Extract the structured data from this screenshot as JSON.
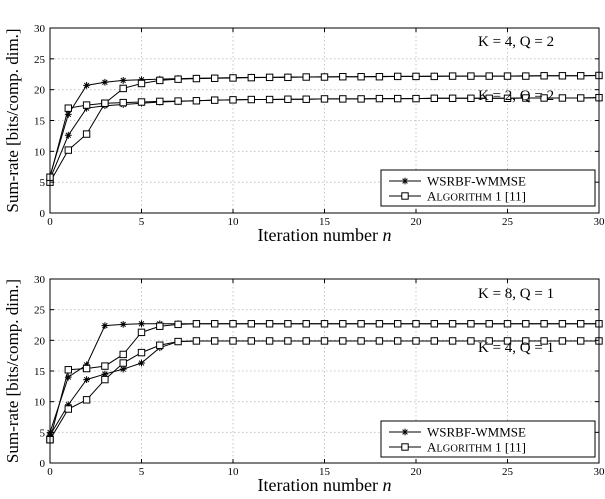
{
  "chart_data": [
    {
      "type": "line",
      "xlabel": "Iteration number n",
      "ylabel": "Sum-rate [bits/comp. dim.]",
      "xlim": [
        0,
        30
      ],
      "ylim": [
        0,
        30
      ],
      "xticks": [
        "0",
        "5",
        "10",
        "15",
        "20",
        "25",
        "30"
      ],
      "yticks": [
        "0",
        "5",
        "10",
        "15",
        "20",
        "25",
        "30"
      ],
      "grid": true,
      "legend_position": "bottom-right",
      "legend": [
        "WSRBF-WMMSE",
        "Algorithm 1 [11]"
      ],
      "annotations": [
        "K = 4, Q = 2",
        "K = 2, Q = 2"
      ],
      "series": [
        {
          "name": "WSRBF-WMMSE",
          "group": "K = 4, Q = 2",
          "marker": "star",
          "x": [
            0,
            1,
            2,
            3,
            4,
            5,
            6,
            7,
            8,
            9,
            10,
            11,
            12,
            13,
            14,
            15,
            16,
            17,
            18,
            19,
            20,
            21,
            22,
            23,
            24,
            25,
            26,
            27,
            28,
            29,
            30
          ],
          "y": [
            6.0,
            16.0,
            20.7,
            21.2,
            21.5,
            21.6,
            21.7,
            21.8,
            21.85,
            21.9,
            21.95,
            22.0,
            22.0,
            22.05,
            22.05,
            22.1,
            22.1,
            22.1,
            22.15,
            22.15,
            22.15,
            22.2,
            22.2,
            22.2,
            22.2,
            22.2,
            22.25,
            22.25,
            22.25,
            22.25,
            22.3
          ]
        },
        {
          "name": "WSRBF-WMMSE",
          "group": "K = 2, Q = 2",
          "marker": "star",
          "x": [
            0,
            1,
            2,
            3,
            4,
            5,
            6,
            7,
            8,
            9,
            10,
            11,
            12,
            13,
            14,
            15,
            16,
            17,
            18,
            19,
            20,
            21,
            22,
            23,
            24,
            25,
            26,
            27,
            28,
            29,
            30
          ],
          "y": [
            5.5,
            12.6,
            17.0,
            17.4,
            17.6,
            17.8,
            18.0,
            18.1,
            18.2,
            18.3,
            18.35,
            18.4,
            18.4,
            18.45,
            18.45,
            18.5,
            18.5,
            18.5,
            18.55,
            18.55,
            18.55,
            18.6,
            18.6,
            18.6,
            18.6,
            18.6,
            18.65,
            18.65,
            18.65,
            18.65,
            18.7
          ]
        },
        {
          "name": "Algorithm 1 [11]",
          "group": "K = 4, Q = 2",
          "marker": "square",
          "x": [
            0,
            1,
            2,
            3,
            4,
            5,
            6,
            7,
            8,
            9,
            10,
            11,
            12,
            13,
            14,
            15,
            16,
            17,
            18,
            19,
            20,
            21,
            22,
            23,
            24,
            25,
            26,
            27,
            28,
            29,
            30
          ],
          "y": [
            5.0,
            10.2,
            12.8,
            17.8,
            20.2,
            21.0,
            21.5,
            21.7,
            21.8,
            21.85,
            21.9,
            21.95,
            22.0,
            22.0,
            22.05,
            22.05,
            22.1,
            22.1,
            22.1,
            22.15,
            22.15,
            22.15,
            22.2,
            22.2,
            22.2,
            22.2,
            22.2,
            22.25,
            22.25,
            22.25,
            22.3
          ]
        },
        {
          "name": "Algorithm 1 [11]",
          "group": "K = 2, Q = 2",
          "marker": "square",
          "x": [
            0,
            1,
            2,
            3,
            4,
            5,
            6,
            7,
            8,
            9,
            10,
            11,
            12,
            13,
            14,
            15,
            16,
            17,
            18,
            19,
            20,
            21,
            22,
            23,
            24,
            25,
            26,
            27,
            28,
            29,
            30
          ],
          "y": [
            5.8,
            17.0,
            17.5,
            17.8,
            17.9,
            18.0,
            18.1,
            18.15,
            18.2,
            18.3,
            18.35,
            18.4,
            18.4,
            18.45,
            18.45,
            18.5,
            18.5,
            18.5,
            18.55,
            18.55,
            18.55,
            18.6,
            18.6,
            18.6,
            18.6,
            18.6,
            18.65,
            18.65,
            18.65,
            18.65,
            18.7
          ]
        }
      ]
    },
    {
      "type": "line",
      "xlabel": "Iteration number n",
      "ylabel": "Sum-rate [bits/comp. dim.]",
      "xlim": [
        0,
        30
      ],
      "ylim": [
        0,
        30
      ],
      "xticks": [
        "0",
        "5",
        "10",
        "15",
        "20",
        "25",
        "30"
      ],
      "yticks": [
        "0",
        "5",
        "10",
        "15",
        "20",
        "25",
        "30"
      ],
      "grid": true,
      "legend_position": "bottom-right",
      "legend": [
        "WSRBF-WMMSE",
        "Algorithm 1 [11]"
      ],
      "annotations": [
        "K = 8, Q = 1",
        "K = 4, Q = 1"
      ],
      "series": [
        {
          "name": "WSRBF-WMMSE",
          "group": "K = 8, Q = 1",
          "marker": "star",
          "x": [
            0,
            1,
            2,
            3,
            4,
            5,
            6,
            7,
            8,
            9,
            10,
            11,
            12,
            13,
            14,
            15,
            16,
            17,
            18,
            19,
            20,
            21,
            22,
            23,
            24,
            25,
            26,
            27,
            28,
            29,
            30
          ],
          "y": [
            5.0,
            14.0,
            16.0,
            22.4,
            22.6,
            22.7,
            22.7,
            22.7,
            22.7,
            22.7,
            22.7,
            22.7,
            22.7,
            22.7,
            22.7,
            22.7,
            22.7,
            22.7,
            22.7,
            22.7,
            22.7,
            22.7,
            22.7,
            22.7,
            22.7,
            22.7,
            22.7,
            22.7,
            22.7,
            22.7,
            22.7
          ]
        },
        {
          "name": "WSRBF-WMMSE",
          "group": "K = 4, Q = 1",
          "marker": "star",
          "x": [
            0,
            1,
            2,
            3,
            4,
            5,
            6,
            7,
            8,
            9,
            10,
            11,
            12,
            13,
            14,
            15,
            16,
            17,
            18,
            19,
            20,
            21,
            22,
            23,
            24,
            25,
            26,
            27,
            28,
            29,
            30
          ],
          "y": [
            4.5,
            9.5,
            13.6,
            14.5,
            15.3,
            16.3,
            18.8,
            19.8,
            19.9,
            19.9,
            19.9,
            19.9,
            19.9,
            19.9,
            19.9,
            19.9,
            19.9,
            19.9,
            19.9,
            19.9,
            19.9,
            19.9,
            19.9,
            19.9,
            19.9,
            19.9,
            19.9,
            19.9,
            19.9,
            19.9,
            19.9
          ]
        },
        {
          "name": "Algorithm 1 [11]",
          "group": "K = 8, Q = 1",
          "marker": "square",
          "x": [
            0,
            1,
            2,
            3,
            4,
            5,
            6,
            7,
            8,
            9,
            10,
            11,
            12,
            13,
            14,
            15,
            16,
            17,
            18,
            19,
            20,
            21,
            22,
            23,
            24,
            25,
            26,
            27,
            28,
            29,
            30
          ],
          "y": [
            3.8,
            15.2,
            15.4,
            15.8,
            17.7,
            21.3,
            22.3,
            22.6,
            22.7,
            22.7,
            22.7,
            22.7,
            22.7,
            22.7,
            22.7,
            22.7,
            22.7,
            22.7,
            22.7,
            22.7,
            22.7,
            22.7,
            22.7,
            22.7,
            22.7,
            22.7,
            22.7,
            22.7,
            22.7,
            22.7,
            22.7
          ]
        },
        {
          "name": "Algorithm 1 [11]",
          "group": "K = 4, Q = 1",
          "marker": "square",
          "x": [
            0,
            1,
            2,
            3,
            4,
            5,
            6,
            7,
            8,
            9,
            10,
            11,
            12,
            13,
            14,
            15,
            16,
            17,
            18,
            19,
            20,
            21,
            22,
            23,
            24,
            25,
            26,
            27,
            28,
            29,
            30
          ],
          "y": [
            3.8,
            8.8,
            10.3,
            13.6,
            16.3,
            18.0,
            19.2,
            19.8,
            19.9,
            19.9,
            19.9,
            19.9,
            19.9,
            19.9,
            19.9,
            19.9,
            19.9,
            19.9,
            19.9,
            19.9,
            19.9,
            19.9,
            19.9,
            19.9,
            19.9,
            19.9,
            19.9,
            19.9,
            19.9,
            19.9,
            19.9
          ]
        }
      ]
    }
  ]
}
